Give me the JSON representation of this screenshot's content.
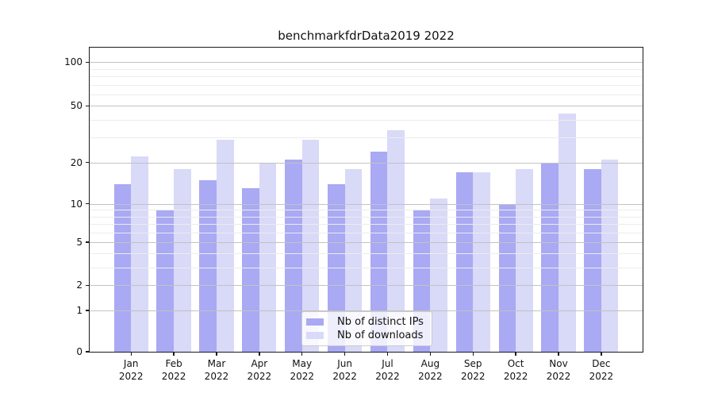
{
  "title": "benchmarkfdrData2019 2022",
  "chart_data": {
    "type": "bar",
    "title": "benchmarkfdrData2019 2022",
    "categories": [
      "Jan 2022",
      "Feb 2022",
      "Mar 2022",
      "Apr 2022",
      "May 2022",
      "Jun 2022",
      "Jul 2022",
      "Aug 2022",
      "Sep 2022",
      "Oct 2022",
      "Nov 2022",
      "Dec 2022"
    ],
    "series": [
      {
        "name": "Nb of distinct IPs",
        "color": "#a9a9f4",
        "values": [
          14,
          9,
          15,
          13,
          21,
          14,
          24,
          9,
          17,
          10,
          20,
          18
        ]
      },
      {
        "name": "Nb of downloads",
        "color": "#d9d9f8",
        "values": [
          22,
          18,
          29,
          20,
          29,
          18,
          34,
          11,
          17,
          18,
          44,
          21
        ]
      }
    ],
    "xlabel": "",
    "ylabel": "",
    "yscale": "symlog-like (position proportional to log10(value + 1.1))",
    "yticks_major": [
      0,
      1,
      2,
      5,
      10,
      20,
      50,
      100
    ],
    "yticks_minor": [
      3,
      4,
      6,
      7,
      8,
      9,
      30,
      40,
      60,
      70,
      80,
      90
    ],
    "ylim": [
      0,
      126
    ],
    "grid": "both, drawn over bars",
    "legend_position": "lower center"
  },
  "colors": {
    "grid_major": "#c2c2c2",
    "grid_minor": "#ececec",
    "spine": "#1a1a1a",
    "bar_distinct_ips": "#a9a9f4",
    "bar_downloads": "#d9d9f8",
    "legend_border": "#cccccc"
  }
}
